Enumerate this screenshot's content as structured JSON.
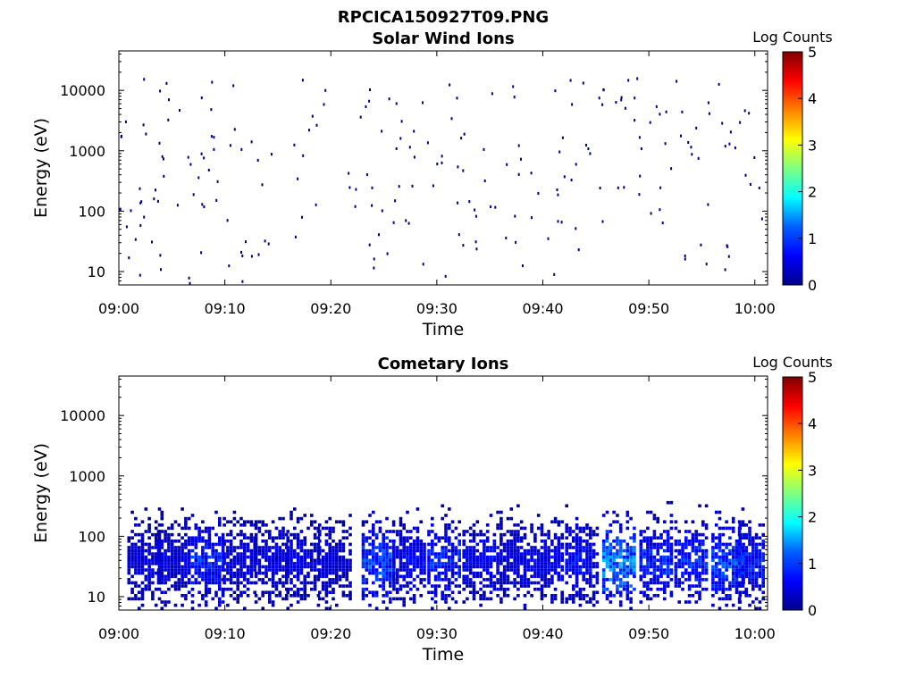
{
  "figure": {
    "title": "RPCICA150927T09.PNG"
  },
  "colormap": {
    "name": "jet",
    "stops": [
      "#00008f",
      "#0000ff",
      "#0080ff",
      "#00ffff",
      "#80ff80",
      "#ffff00",
      "#ff8000",
      "#ff0000",
      "#800000"
    ]
  },
  "chart_data": [
    {
      "type": "heatmap",
      "title": "Solar Wind Ions",
      "xlabel": "Time",
      "ylabel": "Energy (eV)",
      "x_ticks": [
        "09:00",
        "09:10",
        "09:20",
        "09:30",
        "09:40",
        "09:50",
        "10:00"
      ],
      "y_ticks": [
        "10",
        "100",
        "1000",
        "10000"
      ],
      "y_scale": "log",
      "ylim": [
        6,
        45000
      ],
      "x_range": [
        "09:00",
        "10:01"
      ],
      "colorbar": {
        "label": "Log Counts",
        "ticks": [
          "0",
          "1",
          "2",
          "3",
          "4",
          "5"
        ],
        "range": [
          0,
          5
        ]
      },
      "note_values": "sparse isolated points at log counts ~0 across 6 eV to 15000 eV",
      "clusters": [
        {
          "t": 1.5,
          "v": 0.1
        },
        {
          "t": 3.0,
          "v": 0.1
        },
        {
          "t": 5.0,
          "v": 0.1
        },
        {
          "t": 8.0,
          "v": 0.1
        },
        {
          "t": 10.0,
          "v": 0.1
        },
        {
          "t": 13.0,
          "v": 0.1
        },
        {
          "t": 18.0,
          "v": 0.1
        },
        {
          "t": 23.0,
          "v": 0.1
        },
        {
          "t": 25.0,
          "v": 0.15
        },
        {
          "t": 28.0,
          "v": 0.1
        },
        {
          "t": 31.0,
          "v": 0.1
        },
        {
          "t": 34.0,
          "v": 0.1
        },
        {
          "t": 38.0,
          "v": 0.1
        },
        {
          "t": 41.0,
          "v": 0.1
        },
        {
          "t": 44.0,
          "v": 0.1
        },
        {
          "t": 47.0,
          "v": 0.15
        },
        {
          "t": 50.0,
          "v": 0.1
        },
        {
          "t": 53.0,
          "v": 0.1
        },
        {
          "t": 56.0,
          "v": 0.1
        },
        {
          "t": 59.0,
          "v": 0.1
        }
      ],
      "energy_range_ev": [
        6,
        15000
      ],
      "seed": 11
    },
    {
      "type": "heatmap",
      "title": "Cometary Ions",
      "xlabel": "Time",
      "ylabel": "Energy (eV)",
      "x_ticks": [
        "09:00",
        "09:10",
        "09:20",
        "09:30",
        "09:40",
        "09:50",
        "10:00"
      ],
      "y_ticks": [
        "10",
        "100",
        "1000",
        "10000"
      ],
      "y_scale": "log",
      "ylim": [
        6,
        45000
      ],
      "x_range": [
        "09:00",
        "10:01"
      ],
      "colorbar": {
        "label": "Log Counts",
        "ticks": [
          "0",
          "1",
          "2",
          "3",
          "4",
          "5"
        ],
        "range": [
          0,
          5
        ]
      },
      "note_values": "periodic bursts of cometary ions between ~6 eV and ~800 eV, log counts 0-1.6",
      "clusters": [
        {
          "t": 2.2,
          "v": 0.55
        },
        {
          "t": 5.0,
          "v": 0.6
        },
        {
          "t": 8.2,
          "v": 0.95
        },
        {
          "t": 11.2,
          "v": 0.55
        },
        {
          "t": 14.2,
          "v": 0.6
        },
        {
          "t": 17.2,
          "v": 0.6
        },
        {
          "t": 20.2,
          "v": 0.55
        },
        {
          "t": 24.3,
          "v": 1.2
        },
        {
          "t": 27.2,
          "v": 0.75
        },
        {
          "t": 30.5,
          "v": 0.95
        },
        {
          "t": 33.8,
          "v": 0.75
        },
        {
          "t": 37.0,
          "v": 0.65
        },
        {
          "t": 40.2,
          "v": 0.75
        },
        {
          "t": 43.5,
          "v": 0.8
        },
        {
          "t": 47.0,
          "v": 1.5
        },
        {
          "t": 50.5,
          "v": 1.0
        },
        {
          "t": 53.8,
          "v": 1.0
        },
        {
          "t": 57.3,
          "v": 1.15
        },
        {
          "t": 59.8,
          "v": 0.95
        }
      ],
      "energy_range_ev": [
        6,
        800
      ],
      "seed": 7
    }
  ]
}
